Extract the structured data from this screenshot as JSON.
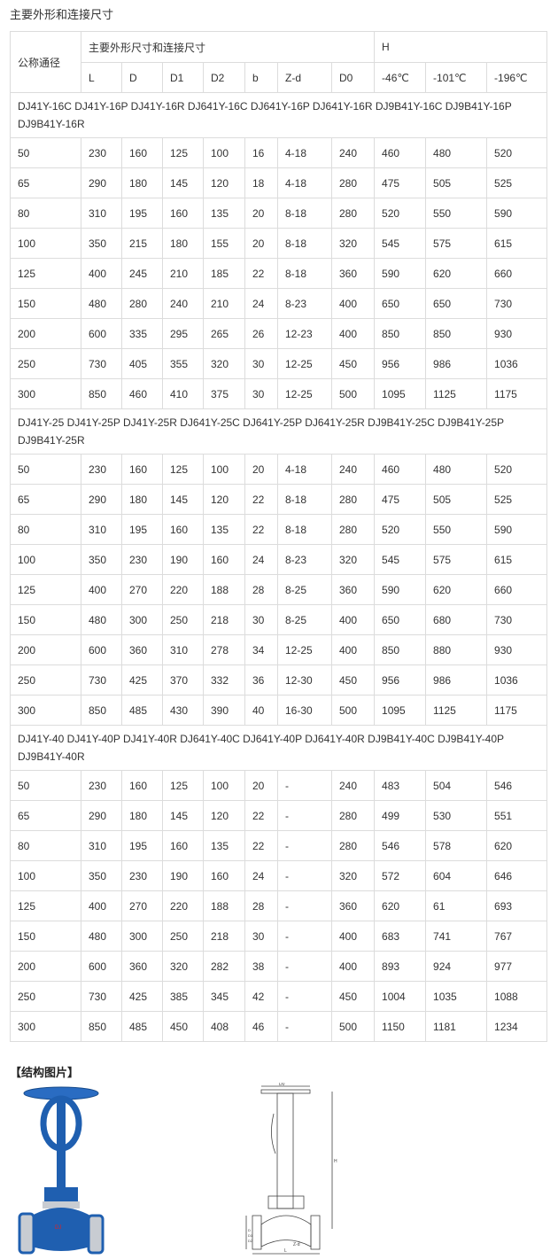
{
  "title": "主要外形和连接尺寸",
  "header": {
    "nominal": "公称通径",
    "dims_group": "主要外形尺寸和连接尺寸",
    "h_group": "H",
    "columns": [
      "L",
      "D",
      "D1",
      "D2",
      "b",
      "Z-d",
      "D0",
      "-46℃",
      "-101℃",
      "-196℃"
    ]
  },
  "sections": [
    {
      "models": "DJ41Y-16C DJ41Y-16P DJ41Y-16R DJ641Y-16C DJ641Y-16P DJ641Y-16R DJ9B41Y-16C DJ9B41Y-16P DJ9B41Y-16R",
      "rows": [
        [
          "50",
          "230",
          "160",
          "125",
          "100",
          "16",
          "4-18",
          "240",
          "460",
          "480",
          "520"
        ],
        [
          "65",
          "290",
          "180",
          "145",
          "120",
          "18",
          "4-18",
          "280",
          "475",
          "505",
          "525"
        ],
        [
          "80",
          "310",
          "195",
          "160",
          "135",
          "20",
          "8-18",
          "280",
          "520",
          "550",
          "590"
        ],
        [
          "100",
          "350",
          "215",
          "180",
          "155",
          "20",
          "8-18",
          "320",
          "545",
          "575",
          "615"
        ],
        [
          "125",
          "400",
          "245",
          "210",
          "185",
          "22",
          "8-18",
          "360",
          "590",
          "620",
          "660"
        ],
        [
          "150",
          "480",
          "280",
          "240",
          "210",
          "24",
          "8-23",
          "400",
          "650",
          "650",
          "730"
        ],
        [
          "200",
          "600",
          "335",
          "295",
          "265",
          "26",
          "12-23",
          "400",
          "850",
          "850",
          "930"
        ],
        [
          "250",
          "730",
          "405",
          "355",
          "320",
          "30",
          "12-25",
          "450",
          "956",
          "986",
          "1036"
        ],
        [
          "300",
          "850",
          "460",
          "410",
          "375",
          "30",
          "12-25",
          "500",
          "1095",
          "1125",
          "1175"
        ]
      ]
    },
    {
      "models": "DJ41Y-25 DJ41Y-25P DJ41Y-25R DJ641Y-25C DJ641Y-25P DJ641Y-25R DJ9B41Y-25C DJ9B41Y-25P DJ9B41Y-25R",
      "rows": [
        [
          "50",
          "230",
          "160",
          "125",
          "100",
          "20",
          "4-18",
          "240",
          "460",
          "480",
          "520"
        ],
        [
          "65",
          "290",
          "180",
          "145",
          "120",
          "22",
          "8-18",
          "280",
          "475",
          "505",
          "525"
        ],
        [
          "80",
          "310",
          "195",
          "160",
          "135",
          "22",
          "8-18",
          "280",
          "520",
          "550",
          "590"
        ],
        [
          "100",
          "350",
          "230",
          "190",
          "160",
          "24",
          "8-23",
          "320",
          "545",
          "575",
          "615"
        ],
        [
          "125",
          "400",
          "270",
          "220",
          "188",
          "28",
          "8-25",
          "360",
          "590",
          "620",
          "660"
        ],
        [
          "150",
          "480",
          "300",
          "250",
          "218",
          "30",
          "8-25",
          "400",
          "650",
          "680",
          "730"
        ],
        [
          "200",
          "600",
          "360",
          "310",
          "278",
          "34",
          "12-25",
          "400",
          "850",
          "880",
          "930"
        ],
        [
          "250",
          "730",
          "425",
          "370",
          "332",
          "36",
          "12-30",
          "450",
          "956",
          "986",
          "1036"
        ],
        [
          "300",
          "850",
          "485",
          "430",
          "390",
          "40",
          "16-30",
          "500",
          "1095",
          "1125",
          "1175"
        ]
      ]
    },
    {
      "models": "DJ41Y-40 DJ41Y-40P DJ41Y-40R DJ641Y-40C DJ641Y-40P DJ641Y-40R DJ9B41Y-40C DJ9B41Y-40P DJ9B41Y-40R",
      "rows": [
        [
          "50",
          "230",
          "160",
          "125",
          "100",
          "20",
          "-",
          "240",
          "483",
          "504",
          "546"
        ],
        [
          "65",
          "290",
          "180",
          "145",
          "120",
          "22",
          "-",
          "280",
          "499",
          "530",
          "551"
        ],
        [
          "80",
          "310",
          "195",
          "160",
          "135",
          "22",
          "-",
          "280",
          "546",
          "578",
          "620"
        ],
        [
          "100",
          "350",
          "230",
          "190",
          "160",
          "24",
          "-",
          "320",
          "572",
          "604",
          "646"
        ],
        [
          "125",
          "400",
          "270",
          "220",
          "188",
          "28",
          "-",
          "360",
          "620",
          "61",
          "693"
        ],
        [
          "150",
          "480",
          "300",
          "250",
          "218",
          "30",
          "-",
          "400",
          "683",
          "741",
          "767"
        ],
        [
          "200",
          "600",
          "360",
          "320",
          "282",
          "38",
          "-",
          "400",
          "893",
          "924",
          "977"
        ],
        [
          "250",
          "730",
          "425",
          "385",
          "345",
          "42",
          "-",
          "450",
          "1004",
          "1035",
          "1088"
        ],
        [
          "300",
          "850",
          "485",
          "450",
          "408",
          "46",
          "-",
          "500",
          "1150",
          "1181",
          "1234"
        ]
      ]
    }
  ],
  "structure": {
    "title": "【结构图片】",
    "drawing_labels": {
      "d0": "D0",
      "h": "H",
      "l": "L",
      "zd": "Z-d",
      "d": "D",
      "d1": "D1",
      "d2": "D2"
    }
  },
  "colors": {
    "valve_blue": "#1f5fb0",
    "border": "#dcdcdc",
    "text": "#333333"
  }
}
